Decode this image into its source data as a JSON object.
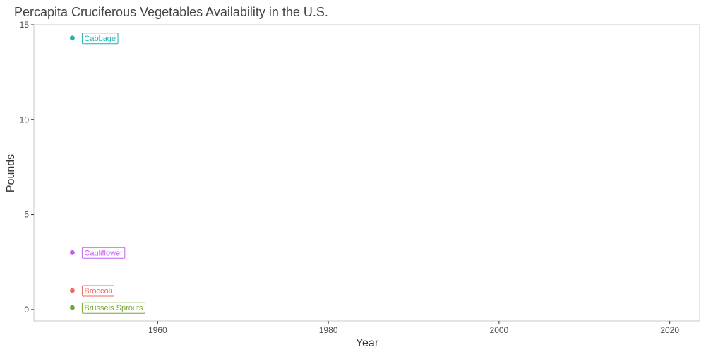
{
  "chart_data": {
    "type": "scatter",
    "title": "Percapita Cruciferous Vegetables Availability in the U.S.",
    "xlabel": "Year",
    "ylabel": "Pounds",
    "xlim": [
      1945.5,
      2023.5
    ],
    "ylim": [
      -0.6,
      15
    ],
    "xticks": [
      1960,
      1980,
      2000,
      2020
    ],
    "yticks": [
      0,
      5,
      10,
      15
    ],
    "grid": false,
    "legend": "none",
    "series": [
      {
        "name": "Cabbage",
        "color": "#1cb4b0",
        "points": [
          {
            "x": 1950,
            "y": 14.3
          }
        ]
      },
      {
        "name": "Cauliflower",
        "color": "#c65ef6",
        "points": [
          {
            "x": 1950,
            "y": 3.0
          }
        ]
      },
      {
        "name": "Broccoli",
        "color": "#ec6a5e",
        "points": [
          {
            "x": 1950,
            "y": 1.0
          }
        ]
      },
      {
        "name": "Brussels Sprouts",
        "color": "#74a82c",
        "points": [
          {
            "x": 1950,
            "y": 0.1
          }
        ]
      }
    ]
  }
}
